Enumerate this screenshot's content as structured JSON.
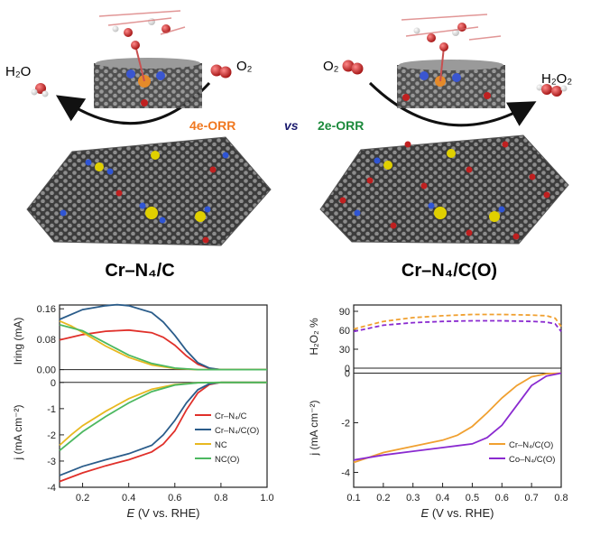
{
  "top": {
    "left_product": "H₂O",
    "left_reactant": "O₂",
    "right_reactant": "O₂",
    "right_product": "H₂O₂",
    "left_process": "4e-ORR",
    "vs": "vs",
    "right_process": "2e-ORR",
    "left_catalyst": "Cr–N₄/C",
    "right_catalyst": "Cr–N₄/C(O)",
    "colors": {
      "four_e": "#f07820",
      "two_e": "#1c8a3c",
      "vs": "#1a1a6e"
    }
  },
  "chart_data": [
    {
      "type": "line",
      "title": "",
      "xlabel": "E (V vs. RHE)",
      "xlim": [
        0.1,
        1.0
      ],
      "xticks": [
        "0.2",
        "0.4",
        "0.6",
        "0.8",
        "1.0"
      ],
      "panels": [
        {
          "name": "ring",
          "ylabel": "I_ring (mA)",
          "ylim": [
            -0.02,
            0.17
          ],
          "yticks": [
            "0.16",
            "0.08",
            "0.00"
          ]
        },
        {
          "name": "disk",
          "ylabel": "j (mA cm⁻²)",
          "ylim": [
            -4,
            0.2
          ],
          "yticks": [
            "0",
            "-1",
            "-2",
            "-3",
            "-4"
          ]
        }
      ],
      "series": [
        {
          "name": "Cr–N₄/C",
          "color": "#e0302a",
          "ring": [
            [
              0.1,
              0.078
            ],
            [
              0.2,
              0.092
            ],
            [
              0.3,
              0.101
            ],
            [
              0.4,
              0.104
            ],
            [
              0.5,
              0.097
            ],
            [
              0.55,
              0.085
            ],
            [
              0.6,
              0.064
            ],
            [
              0.65,
              0.036
            ],
            [
              0.7,
              0.014
            ],
            [
              0.75,
              0.003
            ],
            [
              0.8,
              0.0
            ],
            [
              1.0,
              0.0
            ]
          ],
          "disk": [
            [
              0.1,
              -3.78
            ],
            [
              0.2,
              -3.45
            ],
            [
              0.3,
              -3.18
            ],
            [
              0.4,
              -2.95
            ],
            [
              0.5,
              -2.65
            ],
            [
              0.55,
              -2.35
            ],
            [
              0.6,
              -1.85
            ],
            [
              0.65,
              -1.05
            ],
            [
              0.7,
              -0.4
            ],
            [
              0.75,
              -0.08
            ],
            [
              0.8,
              0.0
            ],
            [
              1.0,
              0.0
            ]
          ]
        },
        {
          "name": "Cr–N₄/C(O)",
          "color": "#2a5c8a",
          "ring": [
            [
              0.1,
              0.132
            ],
            [
              0.2,
              0.158
            ],
            [
              0.3,
              0.168
            ],
            [
              0.35,
              0.171
            ],
            [
              0.4,
              0.168
            ],
            [
              0.5,
              0.15
            ],
            [
              0.55,
              0.125
            ],
            [
              0.6,
              0.09
            ],
            [
              0.65,
              0.05
            ],
            [
              0.7,
              0.018
            ],
            [
              0.75,
              0.004
            ],
            [
              0.8,
              0.0
            ],
            [
              1.0,
              0.0
            ]
          ],
          "disk": [
            [
              0.1,
              -3.55
            ],
            [
              0.2,
              -3.2
            ],
            [
              0.3,
              -2.95
            ],
            [
              0.4,
              -2.72
            ],
            [
              0.5,
              -2.4
            ],
            [
              0.55,
              -2.0
            ],
            [
              0.6,
              -1.45
            ],
            [
              0.65,
              -0.78
            ],
            [
              0.7,
              -0.28
            ],
            [
              0.75,
              -0.05
            ],
            [
              0.8,
              0.0
            ],
            [
              1.0,
              0.0
            ]
          ]
        },
        {
          "name": "NC",
          "color": "#e8b820",
          "ring": [
            [
              0.1,
              0.128
            ],
            [
              0.15,
              0.115
            ],
            [
              0.2,
              0.098
            ],
            [
              0.3,
              0.062
            ],
            [
              0.4,
              0.032
            ],
            [
              0.5,
              0.012
            ],
            [
              0.6,
              0.003
            ],
            [
              0.7,
              0.0
            ],
            [
              1.0,
              0.0
            ]
          ],
          "disk": [
            [
              0.1,
              -2.4
            ],
            [
              0.15,
              -2.0
            ],
            [
              0.2,
              -1.65
            ],
            [
              0.3,
              -1.1
            ],
            [
              0.4,
              -0.62
            ],
            [
              0.5,
              -0.26
            ],
            [
              0.6,
              -0.08
            ],
            [
              0.7,
              -0.01
            ],
            [
              0.8,
              0.0
            ],
            [
              1.0,
              0.0
            ]
          ]
        },
        {
          "name": "NC(O)",
          "color": "#4cb860",
          "ring": [
            [
              0.1,
              0.118
            ],
            [
              0.2,
              0.102
            ],
            [
              0.3,
              0.07
            ],
            [
              0.4,
              0.038
            ],
            [
              0.5,
              0.016
            ],
            [
              0.6,
              0.004
            ],
            [
              0.7,
              0.0
            ],
            [
              1.0,
              0.0
            ]
          ],
          "disk": [
            [
              0.1,
              -2.6
            ],
            [
              0.2,
              -1.88
            ],
            [
              0.3,
              -1.3
            ],
            [
              0.4,
              -0.78
            ],
            [
              0.5,
              -0.35
            ],
            [
              0.6,
              -0.1
            ],
            [
              0.7,
              -0.015
            ],
            [
              0.8,
              0.0
            ],
            [
              1.0,
              0.0
            ]
          ]
        }
      ],
      "legend": {
        "placement": "bottom-right of disk panel"
      }
    },
    {
      "type": "line",
      "title": "",
      "xlabel": "E (V vs. RHE)",
      "xlim": [
        0.1,
        0.8
      ],
      "xticks": [
        "0.1",
        "0.2",
        "0.3",
        "0.4",
        "0.5",
        "0.6",
        "0.7",
        "0.8"
      ],
      "panels": [
        {
          "name": "selectivity",
          "ylabel": "H₂O₂ %",
          "ylim": [
            0,
            100
          ],
          "yticks": [
            "90",
            "60",
            "30",
            "0"
          ],
          "style": "dashed"
        },
        {
          "name": "disk",
          "ylabel": "j (mA cm⁻²)",
          "ylim": [
            -4.6,
            0.2
          ],
          "yticks": [
            "0",
            "-2",
            "-4"
          ]
        }
      ],
      "series": [
        {
          "name": "Cr–N₄/C(O)",
          "color": "#f0a030",
          "selectivity": [
            [
              0.1,
              62
            ],
            [
              0.2,
              74
            ],
            [
              0.3,
              80
            ],
            [
              0.4,
              83
            ],
            [
              0.5,
              85
            ],
            [
              0.6,
              85
            ],
            [
              0.7,
              84
            ],
            [
              0.75,
              83
            ],
            [
              0.78,
              79
            ],
            [
              0.8,
              66
            ]
          ],
          "disk": [
            [
              0.1,
              -3.6
            ],
            [
              0.2,
              -3.2
            ],
            [
              0.3,
              -2.95
            ],
            [
              0.4,
              -2.7
            ],
            [
              0.45,
              -2.5
            ],
            [
              0.5,
              -2.15
            ],
            [
              0.55,
              -1.6
            ],
            [
              0.6,
              -1.0
            ],
            [
              0.65,
              -0.5
            ],
            [
              0.7,
              -0.15
            ],
            [
              0.75,
              -0.02
            ],
            [
              0.8,
              0.0
            ]
          ]
        },
        {
          "name": "Co–N₄/C(O)",
          "color": "#8a2ad0",
          "selectivity": [
            [
              0.1,
              58
            ],
            [
              0.2,
              68
            ],
            [
              0.3,
              72
            ],
            [
              0.4,
              74
            ],
            [
              0.5,
              75
            ],
            [
              0.6,
              75
            ],
            [
              0.7,
              74
            ],
            [
              0.75,
              73
            ],
            [
              0.78,
              70
            ],
            [
              0.8,
              58
            ]
          ],
          "disk": [
            [
              0.1,
              -3.5
            ],
            [
              0.2,
              -3.3
            ],
            [
              0.3,
              -3.15
            ],
            [
              0.4,
              -3.0
            ],
            [
              0.5,
              -2.85
            ],
            [
              0.55,
              -2.6
            ],
            [
              0.6,
              -2.1
            ],
            [
              0.65,
              -1.3
            ],
            [
              0.7,
              -0.5
            ],
            [
              0.75,
              -0.12
            ],
            [
              0.8,
              0.0
            ]
          ]
        }
      ],
      "legend": {
        "placement": "bottom-right of disk panel"
      }
    }
  ]
}
